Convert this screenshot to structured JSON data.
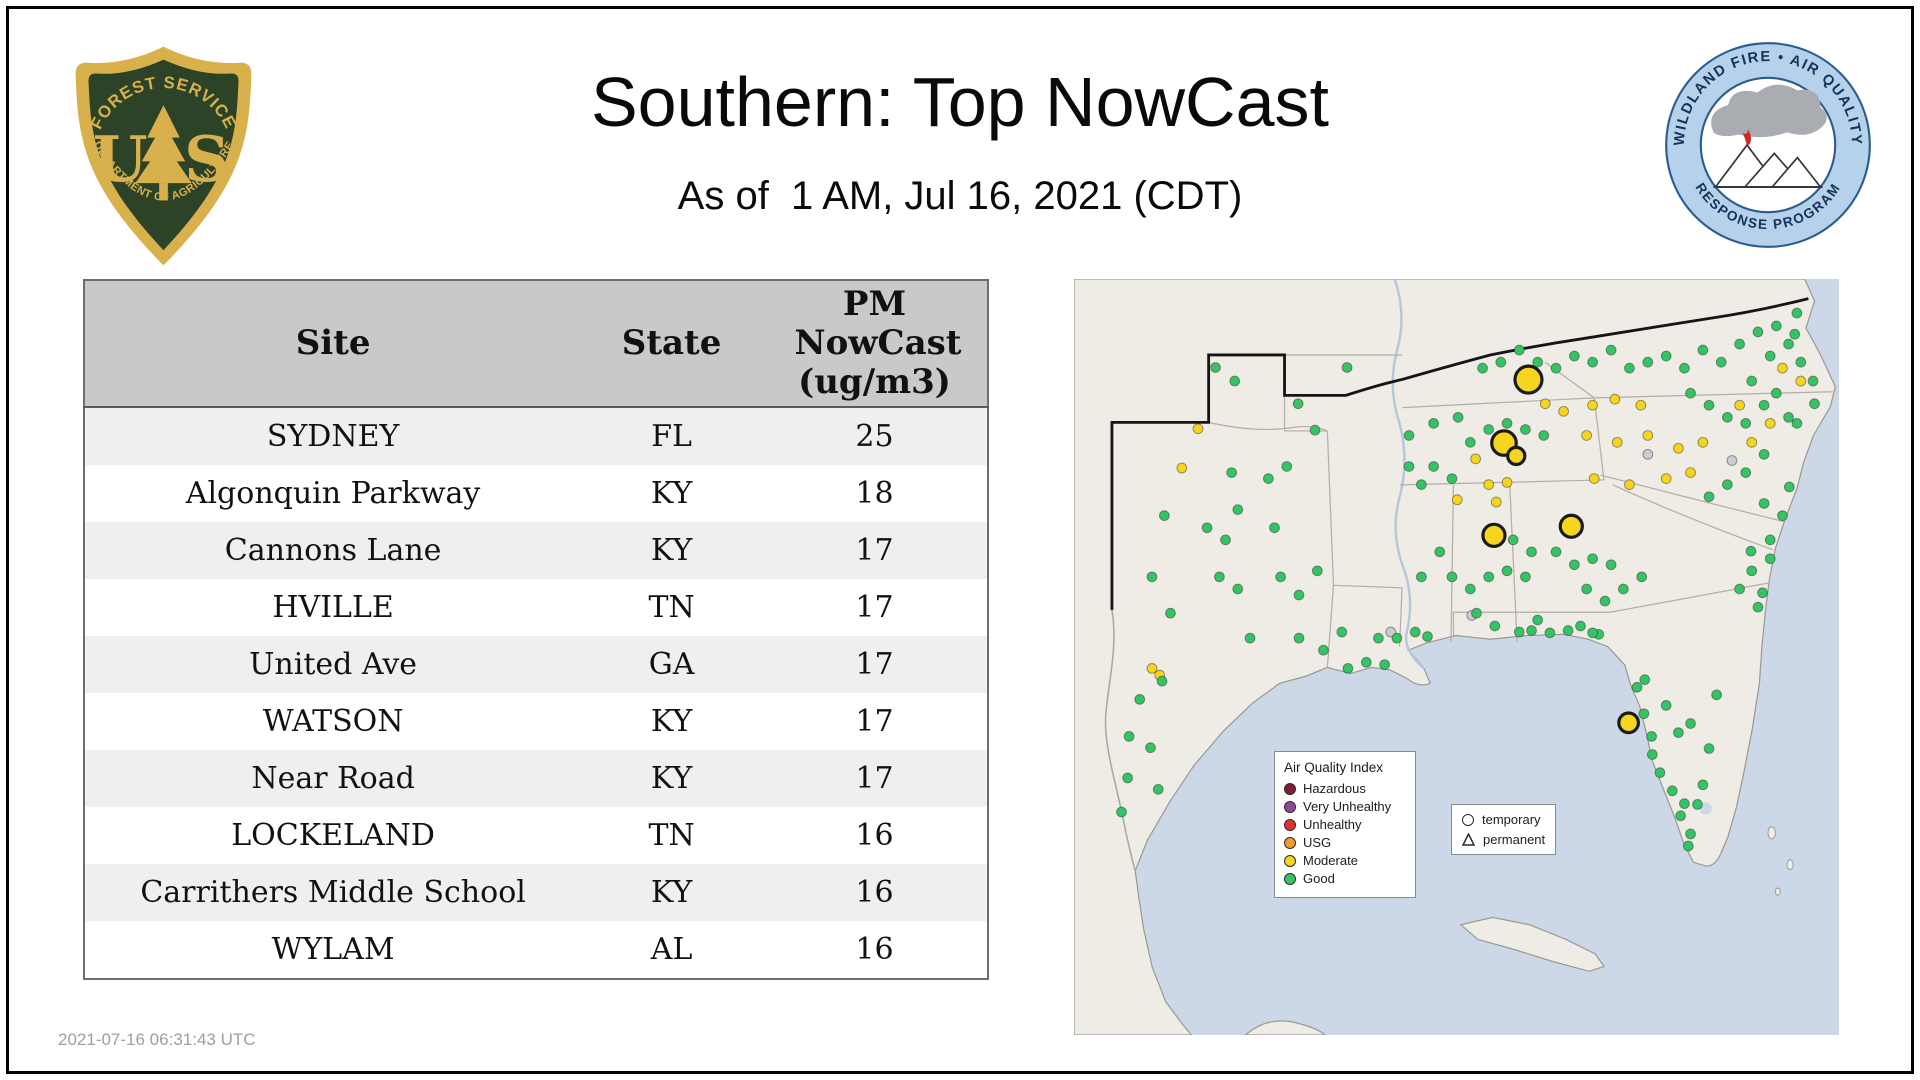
{
  "header": {
    "title": "Southern: Top NowCast",
    "subtitle": "As of  1 AM, Jul 16, 2021 (CDT)",
    "usfs_logo": {
      "top": "FOREST SERVICE",
      "letter_left": "U",
      "letter_right": "S",
      "bottom": "DEPARTMENT OF AGRICULTURE"
    },
    "program_logo": {
      "top": "WILDLAND FIRE • AIR QUALITY",
      "bottom": "RESPONSE PROGRAM"
    }
  },
  "table": {
    "columns": [
      "Site",
      "State",
      "PM NowCast (ug/m3)"
    ],
    "rows": [
      {
        "site": "SYDNEY",
        "state": "FL",
        "value": "25"
      },
      {
        "site": "Algonquin Parkway",
        "state": "KY",
        "value": "18"
      },
      {
        "site": "Cannons Lane",
        "state": "KY",
        "value": "17"
      },
      {
        "site": "HVILLE",
        "state": "TN",
        "value": "17"
      },
      {
        "site": "United Ave",
        "state": "GA",
        "value": "17"
      },
      {
        "site": "WATSON",
        "state": "KY",
        "value": "17"
      },
      {
        "site": "Near Road",
        "state": "KY",
        "value": "17"
      },
      {
        "site": "LOCKELAND",
        "state": "TN",
        "value": "16"
      },
      {
        "site": "Carrithers Middle School",
        "state": "KY",
        "value": "16"
      },
      {
        "site": "WYLAM",
        "state": "AL",
        "value": "16"
      }
    ]
  },
  "map": {
    "aqi_legend": {
      "title": "Air Quality Index",
      "items": [
        {
          "label": "Hazardous",
          "color": "#7d1d34"
        },
        {
          "label": "Very Unhealthy",
          "color": "#8f4899"
        },
        {
          "label": "Unhealthy",
          "color": "#e0342b"
        },
        {
          "label": "USG",
          "color": "#ef9c33"
        },
        {
          "label": "Moderate",
          "color": "#f6d51f"
        },
        {
          "label": "Good",
          "color": "#35c463"
        }
      ]
    },
    "marker_legend": {
      "temporary": "temporary",
      "permanent": "permanent"
    },
    "category_colors": {
      "g": "#35c463",
      "m": "#f6d51f",
      "n": "#c9cdd1"
    },
    "points": [
      {
        "x": 59.4,
        "y": 13.3,
        "c": "m",
        "t": 1,
        "r": 11
      },
      {
        "x": 56.2,
        "y": 21.7,
        "c": "m",
        "t": 1,
        "r": 10
      },
      {
        "x": 57.8,
        "y": 23.4,
        "c": "m",
        "t": 1,
        "r": 7
      },
      {
        "x": 54.9,
        "y": 33.9,
        "c": "m",
        "t": 1,
        "r": 9
      },
      {
        "x": 65.0,
        "y": 32.7,
        "c": "m",
        "t": 1,
        "r": 9
      },
      {
        "x": 72.5,
        "y": 58.7,
        "c": "m",
        "t": 1,
        "r": 8
      },
      {
        "x": 16.2,
        "y": 19.8,
        "c": "m"
      },
      {
        "x": 14.1,
        "y": 25.0,
        "c": "m"
      },
      {
        "x": 52.5,
        "y": 23.8,
        "c": "m"
      },
      {
        "x": 54.2,
        "y": 27.2,
        "c": "m"
      },
      {
        "x": 56.6,
        "y": 26.9,
        "c": "m"
      },
      {
        "x": 55.2,
        "y": 29.5,
        "c": "m"
      },
      {
        "x": 50.1,
        "y": 29.2,
        "c": "m"
      },
      {
        "x": 61.6,
        "y": 16.5,
        "c": "m"
      },
      {
        "x": 64.0,
        "y": 17.5,
        "c": "m"
      },
      {
        "x": 67.8,
        "y": 16.7,
        "c": "m"
      },
      {
        "x": 70.7,
        "y": 15.9,
        "c": "m"
      },
      {
        "x": 74.1,
        "y": 16.7,
        "c": "m"
      },
      {
        "x": 67.0,
        "y": 20.7,
        "c": "m"
      },
      {
        "x": 71.0,
        "y": 21.6,
        "c": "m"
      },
      {
        "x": 75.0,
        "y": 20.7,
        "c": "m"
      },
      {
        "x": 79.0,
        "y": 22.4,
        "c": "m"
      },
      {
        "x": 82.2,
        "y": 21.6,
        "c": "m"
      },
      {
        "x": 68.0,
        "y": 26.4,
        "c": "m"
      },
      {
        "x": 72.6,
        "y": 27.2,
        "c": "m"
      },
      {
        "x": 77.4,
        "y": 26.4,
        "c": "m"
      },
      {
        "x": 80.6,
        "y": 25.6,
        "c": "m"
      },
      {
        "x": 87.0,
        "y": 16.7,
        "c": "m"
      },
      {
        "x": 88.6,
        "y": 21.6,
        "c": "m"
      },
      {
        "x": 91.0,
        "y": 19.1,
        "c": "m"
      },
      {
        "x": 92.6,
        "y": 11.8,
        "c": "m"
      },
      {
        "x": 95.0,
        "y": 13.5,
        "c": "m"
      },
      {
        "x": 10.2,
        "y": 51.5,
        "c": "m"
      },
      {
        "x": 11.2,
        "y": 52.4,
        "c": "m"
      },
      {
        "x": 41.4,
        "y": 46.7,
        "c": "n"
      },
      {
        "x": 75.0,
        "y": 23.2,
        "c": "n"
      },
      {
        "x": 52.0,
        "y": 44.5,
        "c": "n"
      },
      {
        "x": 86.0,
        "y": 24.0,
        "c": "n"
      },
      {
        "x": 8.6,
        "y": 55.6,
        "c": "g"
      },
      {
        "x": 11.5,
        "y": 53.2,
        "c": "g"
      },
      {
        "x": 12.6,
        "y": 44.2,
        "c": "g"
      },
      {
        "x": 10.2,
        "y": 39.4,
        "c": "g"
      },
      {
        "x": 11.8,
        "y": 31.3,
        "c": "g"
      },
      {
        "x": 17.4,
        "y": 32.9,
        "c": "g"
      },
      {
        "x": 19.8,
        "y": 34.5,
        "c": "g"
      },
      {
        "x": 21.4,
        "y": 30.5,
        "c": "g"
      },
      {
        "x": 26.2,
        "y": 32.9,
        "c": "g"
      },
      {
        "x": 25.4,
        "y": 26.4,
        "c": "g"
      },
      {
        "x": 27.8,
        "y": 24.8,
        "c": "g"
      },
      {
        "x": 20.6,
        "y": 25.6,
        "c": "g"
      },
      {
        "x": 19.0,
        "y": 39.4,
        "c": "g"
      },
      {
        "x": 21.4,
        "y": 41.0,
        "c": "g"
      },
      {
        "x": 27.0,
        "y": 39.4,
        "c": "g"
      },
      {
        "x": 29.4,
        "y": 41.8,
        "c": "g"
      },
      {
        "x": 31.8,
        "y": 38.6,
        "c": "g"
      },
      {
        "x": 23.0,
        "y": 47.5,
        "c": "g"
      },
      {
        "x": 29.4,
        "y": 47.5,
        "c": "g"
      },
      {
        "x": 32.6,
        "y": 49.1,
        "c": "g"
      },
      {
        "x": 35.0,
        "y": 46.7,
        "c": "g"
      },
      {
        "x": 7.2,
        "y": 60.5,
        "c": "g"
      },
      {
        "x": 10.0,
        "y": 62.0,
        "c": "g"
      },
      {
        "x": 7.0,
        "y": 66.0,
        "c": "g"
      },
      {
        "x": 11.0,
        "y": 67.5,
        "c": "g"
      },
      {
        "x": 6.2,
        "y": 70.5,
        "c": "g"
      },
      {
        "x": 18.5,
        "y": 11.7,
        "c": "g"
      },
      {
        "x": 21.0,
        "y": 13.5,
        "c": "g"
      },
      {
        "x": 29.3,
        "y": 16.5,
        "c": "g"
      },
      {
        "x": 35.7,
        "y": 11.7,
        "c": "g"
      },
      {
        "x": 31.5,
        "y": 20.0,
        "c": "g"
      },
      {
        "x": 35.8,
        "y": 51.5,
        "c": "g"
      },
      {
        "x": 38.2,
        "y": 50.7,
        "c": "g"
      },
      {
        "x": 40.6,
        "y": 51.0,
        "c": "g"
      },
      {
        "x": 39.8,
        "y": 47.5,
        "c": "g"
      },
      {
        "x": 42.2,
        "y": 47.5,
        "c": "g"
      },
      {
        "x": 44.6,
        "y": 46.7,
        "c": "g"
      },
      {
        "x": 46.2,
        "y": 47.3,
        "c": "g"
      },
      {
        "x": 45.4,
        "y": 39.4,
        "c": "g"
      },
      {
        "x": 47.8,
        "y": 36.1,
        "c": "g"
      },
      {
        "x": 49.4,
        "y": 39.4,
        "c": "g"
      },
      {
        "x": 51.8,
        "y": 41.0,
        "c": "g"
      },
      {
        "x": 54.2,
        "y": 39.4,
        "c": "g"
      },
      {
        "x": 56.6,
        "y": 38.6,
        "c": "g"
      },
      {
        "x": 59.0,
        "y": 39.4,
        "c": "g"
      },
      {
        "x": 59.8,
        "y": 36.1,
        "c": "g"
      },
      {
        "x": 57.4,
        "y": 34.5,
        "c": "g"
      },
      {
        "x": 52.6,
        "y": 44.2,
        "c": "g"
      },
      {
        "x": 55.0,
        "y": 45.9,
        "c": "g"
      },
      {
        "x": 58.2,
        "y": 46.7,
        "c": "g"
      },
      {
        "x": 60.6,
        "y": 45.1,
        "c": "g"
      },
      {
        "x": 63.0,
        "y": 36.1,
        "c": "g"
      },
      {
        "x": 65.4,
        "y": 37.8,
        "c": "g"
      },
      {
        "x": 67.8,
        "y": 37.0,
        "c": "g"
      },
      {
        "x": 70.2,
        "y": 37.8,
        "c": "g"
      },
      {
        "x": 67.0,
        "y": 41.0,
        "c": "g"
      },
      {
        "x": 69.4,
        "y": 42.6,
        "c": "g"
      },
      {
        "x": 71.8,
        "y": 41.0,
        "c": "g"
      },
      {
        "x": 74.2,
        "y": 39.4,
        "c": "g"
      },
      {
        "x": 66.2,
        "y": 45.9,
        "c": "g"
      },
      {
        "x": 68.6,
        "y": 47.0,
        "c": "g"
      },
      {
        "x": 59.8,
        "y": 46.5,
        "c": "g"
      },
      {
        "x": 62.2,
        "y": 46.8,
        "c": "g"
      },
      {
        "x": 64.6,
        "y": 46.5,
        "c": "g"
      },
      {
        "x": 67.8,
        "y": 46.8,
        "c": "g"
      },
      {
        "x": 73.6,
        "y": 54.0,
        "c": "g"
      },
      {
        "x": 74.6,
        "y": 53.0,
        "c": "g"
      },
      {
        "x": 74.5,
        "y": 57.5,
        "c": "g"
      },
      {
        "x": 75.5,
        "y": 60.5,
        "c": "g"
      },
      {
        "x": 75.6,
        "y": 62.9,
        "c": "g"
      },
      {
        "x": 76.6,
        "y": 65.3,
        "c": "g"
      },
      {
        "x": 78.2,
        "y": 67.7,
        "c": "g"
      },
      {
        "x": 79.8,
        "y": 69.4,
        "c": "g"
      },
      {
        "x": 79.3,
        "y": 71.0,
        "c": "g"
      },
      {
        "x": 80.6,
        "y": 73.4,
        "c": "g"
      },
      {
        "x": 80.3,
        "y": 75.0,
        "c": "g"
      },
      {
        "x": 81.5,
        "y": 69.5,
        "c": "g"
      },
      {
        "x": 82.2,
        "y": 66.9,
        "c": "g"
      },
      {
        "x": 83.0,
        "y": 62.1,
        "c": "g"
      },
      {
        "x": 80.6,
        "y": 58.8,
        "c": "g"
      },
      {
        "x": 79.0,
        "y": 60.0,
        "c": "g"
      },
      {
        "x": 84.0,
        "y": 55.0,
        "c": "g"
      },
      {
        "x": 77.4,
        "y": 56.4,
        "c": "g"
      },
      {
        "x": 43.8,
        "y": 24.8,
        "c": "g"
      },
      {
        "x": 45.4,
        "y": 27.2,
        "c": "g"
      },
      {
        "x": 47.0,
        "y": 24.8,
        "c": "g"
      },
      {
        "x": 49.4,
        "y": 26.4,
        "c": "g"
      },
      {
        "x": 51.8,
        "y": 21.6,
        "c": "g"
      },
      {
        "x": 54.2,
        "y": 19.9,
        "c": "g"
      },
      {
        "x": 50.2,
        "y": 18.3,
        "c": "g"
      },
      {
        "x": 47.0,
        "y": 19.1,
        "c": "g"
      },
      {
        "x": 43.8,
        "y": 20.7,
        "c": "g"
      },
      {
        "x": 56.6,
        "y": 19.1,
        "c": "g"
      },
      {
        "x": 59.0,
        "y": 19.9,
        "c": "g"
      },
      {
        "x": 61.4,
        "y": 20.7,
        "c": "g"
      },
      {
        "x": 80.6,
        "y": 15.1,
        "c": "g"
      },
      {
        "x": 83.0,
        "y": 16.7,
        "c": "g"
      },
      {
        "x": 85.4,
        "y": 18.3,
        "c": "g"
      },
      {
        "x": 87.8,
        "y": 19.1,
        "c": "g"
      },
      {
        "x": 90.2,
        "y": 16.7,
        "c": "g"
      },
      {
        "x": 91.8,
        "y": 15.1,
        "c": "g"
      },
      {
        "x": 93.4,
        "y": 18.3,
        "c": "g"
      },
      {
        "x": 94.5,
        "y": 19.1,
        "c": "g"
      },
      {
        "x": 88.6,
        "y": 13.5,
        "c": "g"
      },
      {
        "x": 91.0,
        "y": 10.2,
        "c": "g"
      },
      {
        "x": 93.4,
        "y": 8.6,
        "c": "g"
      },
      {
        "x": 95.0,
        "y": 11.0,
        "c": "g"
      },
      {
        "x": 96.6,
        "y": 13.5,
        "c": "g"
      },
      {
        "x": 96.8,
        "y": 16.5,
        "c": "g"
      },
      {
        "x": 90.2,
        "y": 23.2,
        "c": "g"
      },
      {
        "x": 87.8,
        "y": 25.6,
        "c": "g"
      },
      {
        "x": 85.4,
        "y": 27.2,
        "c": "g"
      },
      {
        "x": 83.0,
        "y": 28.8,
        "c": "g"
      },
      {
        "x": 90.2,
        "y": 29.7,
        "c": "g"
      },
      {
        "x": 92.6,
        "y": 31.3,
        "c": "g"
      },
      {
        "x": 93.5,
        "y": 27.5,
        "c": "g"
      },
      {
        "x": 91.0,
        "y": 34.5,
        "c": "g"
      },
      {
        "x": 88.5,
        "y": 36.0,
        "c": "g"
      },
      {
        "x": 91.0,
        "y": 37.0,
        "c": "g"
      },
      {
        "x": 88.6,
        "y": 38.6,
        "c": "g"
      },
      {
        "x": 87.0,
        "y": 41.0,
        "c": "g"
      },
      {
        "x": 89.4,
        "y": 43.4,
        "c": "g"
      },
      {
        "x": 90.0,
        "y": 41.5,
        "c": "g"
      },
      {
        "x": 53.4,
        "y": 11.8,
        "c": "g"
      },
      {
        "x": 55.8,
        "y": 11.0,
        "c": "g"
      },
      {
        "x": 58.2,
        "y": 9.4,
        "c": "g"
      },
      {
        "x": 60.6,
        "y": 11.0,
        "c": "g"
      },
      {
        "x": 63.0,
        "y": 11.8,
        "c": "g"
      },
      {
        "x": 65.4,
        "y": 10.2,
        "c": "g"
      },
      {
        "x": 67.8,
        "y": 11.0,
        "c": "g"
      },
      {
        "x": 70.2,
        "y": 9.4,
        "c": "g"
      },
      {
        "x": 72.6,
        "y": 11.8,
        "c": "g"
      },
      {
        "x": 75.0,
        "y": 11.0,
        "c": "g"
      },
      {
        "x": 77.4,
        "y": 10.2,
        "c": "g"
      },
      {
        "x": 79.8,
        "y": 11.8,
        "c": "g"
      },
      {
        "x": 82.2,
        "y": 9.4,
        "c": "g"
      },
      {
        "x": 84.6,
        "y": 11.0,
        "c": "g"
      },
      {
        "x": 87.0,
        "y": 8.6,
        "c": "g"
      },
      {
        "x": 89.4,
        "y": 7.0,
        "c": "g"
      },
      {
        "x": 91.8,
        "y": 6.2,
        "c": "g"
      },
      {
        "x": 94.2,
        "y": 7.3,
        "c": "g"
      },
      {
        "x": 94.5,
        "y": 4.5,
        "c": "g"
      }
    ]
  },
  "footer": {
    "timestamp": "2021-07-16 06:31:43 UTC"
  }
}
